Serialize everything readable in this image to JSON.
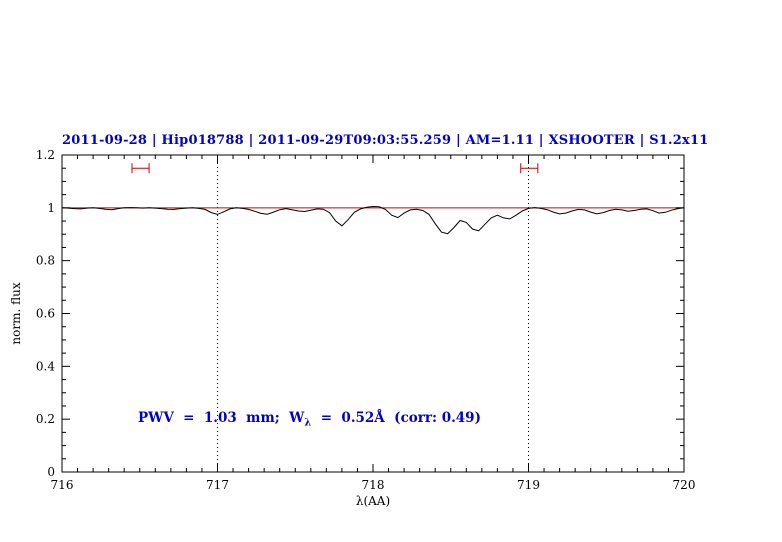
{
  "colors": {
    "title": "#0000cd",
    "annotation": "#0000cd",
    "continuum": "#cc0000",
    "marker": "#cc0000",
    "spectrum": "#000000",
    "axis": "#000000"
  },
  "annotation": {
    "part1": "PWV  =  1.03  mm;  W",
    "sub": "λ",
    "part2": "  =  0.52Å  (corr: 0.49)"
  },
  "chart_data": {
    "type": "line",
    "title": "2011-09-28 | Hip018788 | 2011-09-29T09:03:55.259 | AM=1.11 | XSHOOTER | S1.2x11",
    "xlabel": "λ(AA)",
    "ylabel": "norm. flux",
    "xlim": [
      716,
      720
    ],
    "ylim": [
      0,
      1.2
    ],
    "grid": false,
    "legend": "none",
    "xticks": [
      {
        "v": 716,
        "label": "716"
      },
      {
        "v": 717,
        "label": "717"
      },
      {
        "v": 718,
        "label": "718"
      },
      {
        "v": 719,
        "label": "719"
      },
      {
        "v": 720,
        "label": "720"
      }
    ],
    "yticks": [
      {
        "v": 0,
        "label": "0"
      },
      {
        "v": 0.2,
        "label": "0.2"
      },
      {
        "v": 0.4,
        "label": "0.4"
      },
      {
        "v": 0.6,
        "label": "0.6"
      },
      {
        "v": 0.8,
        "label": "0.8"
      },
      {
        "v": 1,
        "label": "1"
      },
      {
        "v": 1.2,
        "label": "1.2"
      }
    ],
    "vlines": [
      717,
      719
    ],
    "continuum_y": 1.0,
    "markers": [
      {
        "x1": 716.45,
        "x2": 716.56,
        "y": 1.15
      },
      {
        "x1": 718.95,
        "x2": 719.06,
        "y": 1.15
      }
    ],
    "series": [
      {
        "name": "telluric-spectrum",
        "points": [
          [
            716.0,
            1.0
          ],
          [
            716.04,
            0.999
          ],
          [
            716.08,
            0.997
          ],
          [
            716.12,
            0.996
          ],
          [
            716.16,
            0.999
          ],
          [
            716.2,
            1.0
          ],
          [
            716.24,
            0.998
          ],
          [
            716.28,
            0.995
          ],
          [
            716.32,
            0.993
          ],
          [
            716.36,
            0.997
          ],
          [
            716.4,
            1.0
          ],
          [
            716.44,
            1.001
          ],
          [
            716.48,
            1.0
          ],
          [
            716.52,
            0.999
          ],
          [
            716.56,
            1.0
          ],
          [
            716.6,
            0.999
          ],
          [
            716.64,
            0.997
          ],
          [
            716.68,
            0.995
          ],
          [
            716.72,
            0.994
          ],
          [
            716.76,
            0.997
          ],
          [
            716.8,
            0.999
          ],
          [
            716.84,
            1.0
          ],
          [
            716.88,
            0.998
          ],
          [
            716.92,
            0.994
          ],
          [
            716.96,
            0.982
          ],
          [
            717.0,
            0.975
          ],
          [
            717.04,
            0.985
          ],
          [
            717.08,
            0.996
          ],
          [
            717.12,
            1.0
          ],
          [
            717.16,
            0.998
          ],
          [
            717.2,
            0.994
          ],
          [
            717.24,
            0.987
          ],
          [
            717.28,
            0.979
          ],
          [
            717.32,
            0.976
          ],
          [
            717.36,
            0.984
          ],
          [
            717.4,
            0.993
          ],
          [
            717.44,
            0.997
          ],
          [
            717.48,
            0.993
          ],
          [
            717.52,
            0.988
          ],
          [
            717.56,
            0.986
          ],
          [
            717.6,
            0.991
          ],
          [
            717.64,
            0.996
          ],
          [
            717.68,
            0.995
          ],
          [
            717.72,
            0.982
          ],
          [
            717.76,
            0.95
          ],
          [
            717.8,
            0.932
          ],
          [
            717.84,
            0.955
          ],
          [
            717.88,
            0.983
          ],
          [
            717.92,
            0.996
          ],
          [
            717.96,
            1.002
          ],
          [
            718.0,
            1.005
          ],
          [
            718.04,
            1.004
          ],
          [
            718.08,
            0.994
          ],
          [
            718.12,
            0.972
          ],
          [
            718.16,
            0.963
          ],
          [
            718.2,
            0.98
          ],
          [
            718.24,
            0.992
          ],
          [
            718.28,
            0.995
          ],
          [
            718.32,
            0.99
          ],
          [
            718.36,
            0.975
          ],
          [
            718.4,
            0.94
          ],
          [
            718.44,
            0.908
          ],
          [
            718.48,
            0.902
          ],
          [
            718.52,
            0.925
          ],
          [
            718.56,
            0.952
          ],
          [
            718.6,
            0.945
          ],
          [
            718.64,
            0.92
          ],
          [
            718.68,
            0.913
          ],
          [
            718.72,
            0.938
          ],
          [
            718.76,
            0.962
          ],
          [
            718.8,
            0.972
          ],
          [
            718.84,
            0.962
          ],
          [
            718.88,
            0.958
          ],
          [
            718.92,
            0.972
          ],
          [
            718.96,
            0.988
          ],
          [
            719.0,
            0.998
          ],
          [
            719.04,
            1.001
          ],
          [
            719.08,
            0.998
          ],
          [
            719.12,
            0.993
          ],
          [
            719.16,
            0.984
          ],
          [
            719.2,
            0.977
          ],
          [
            719.24,
            0.98
          ],
          [
            719.28,
            0.988
          ],
          [
            719.32,
            0.994
          ],
          [
            719.36,
            0.992
          ],
          [
            719.4,
            0.984
          ],
          [
            719.44,
            0.977
          ],
          [
            719.48,
            0.982
          ],
          [
            719.52,
            0.99
          ],
          [
            719.56,
            0.995
          ],
          [
            719.6,
            0.992
          ],
          [
            719.64,
            0.987
          ],
          [
            719.68,
            0.99
          ],
          [
            719.72,
            0.995
          ],
          [
            719.76,
            0.996
          ],
          [
            719.8,
            0.989
          ],
          [
            719.84,
            0.98
          ],
          [
            719.88,
            0.983
          ],
          [
            719.92,
            0.991
          ],
          [
            719.96,
            0.997
          ],
          [
            720.0,
            1.0
          ]
        ]
      }
    ]
  }
}
